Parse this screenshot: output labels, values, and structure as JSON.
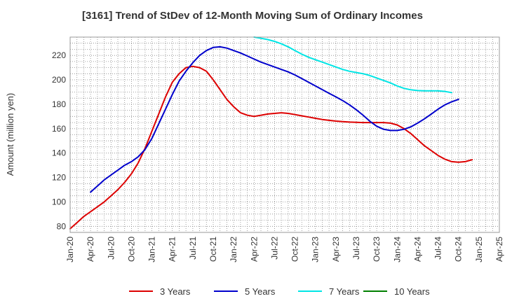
{
  "chart_data": {
    "type": "line",
    "title": "[3161]  Trend of StDev of 12-Month Moving Sum of Ordinary Incomes",
    "xlabel": "",
    "ylabel": "Amount (million yen)",
    "ylim": [
      75,
      235
    ],
    "yticks": [
      80,
      100,
      120,
      140,
      160,
      180,
      200,
      220
    ],
    "x_tick_labels": [
      "Jan-20",
      "Apr-20",
      "Jul-20",
      "Oct-20",
      "Jan-21",
      "Apr-21",
      "Jul-21",
      "Oct-21",
      "Jan-22",
      "Apr-22",
      "Jul-22",
      "Oct-22",
      "Jan-23",
      "Apr-23",
      "Jul-23",
      "Oct-23",
      "Jan-24",
      "Apr-24",
      "Jul-24",
      "Oct-24",
      "Jan-25",
      "Apr-25"
    ],
    "grid": true,
    "legend_position": "bottom",
    "series": [
      {
        "name": "3 Years",
        "color": "#dd0000",
        "points": [
          [
            0,
            78
          ],
          [
            1,
            83
          ],
          [
            2,
            88
          ],
          [
            3,
            92
          ],
          [
            4,
            96
          ],
          [
            5,
            100
          ],
          [
            6,
            105
          ],
          [
            7,
            110
          ],
          [
            8,
            116
          ],
          [
            9,
            123
          ],
          [
            10,
            132
          ],
          [
            11,
            144
          ],
          [
            12,
            158
          ],
          [
            13,
            172
          ],
          [
            14,
            186
          ],
          [
            15,
            198
          ],
          [
            16,
            205
          ],
          [
            17,
            210
          ],
          [
            18,
            211
          ],
          [
            19,
            210
          ],
          [
            20,
            207
          ],
          [
            21,
            200
          ],
          [
            22,
            192
          ],
          [
            23,
            184
          ],
          [
            24,
            178
          ],
          [
            25,
            173
          ],
          [
            26,
            171
          ],
          [
            27,
            170
          ],
          [
            28,
            171
          ],
          [
            29,
            172
          ],
          [
            30,
            172.5
          ],
          [
            31,
            173
          ],
          [
            32,
            172.5
          ],
          [
            33,
            171.5
          ],
          [
            34,
            170.5
          ],
          [
            35,
            169.5
          ],
          [
            36,
            168.5
          ],
          [
            37,
            167.5
          ],
          [
            38,
            166.8
          ],
          [
            39,
            166.2
          ],
          [
            40,
            165.7
          ],
          [
            41,
            165.4
          ],
          [
            42,
            165.2
          ],
          [
            43,
            165
          ],
          [
            44,
            165
          ],
          [
            45,
            165
          ],
          [
            46,
            165
          ],
          [
            47,
            164.5
          ],
          [
            48,
            163
          ],
          [
            49,
            160
          ],
          [
            50,
            156
          ],
          [
            51,
            151
          ],
          [
            52,
            146
          ],
          [
            53,
            142
          ],
          [
            54,
            138
          ],
          [
            55,
            135
          ],
          [
            56,
            133
          ],
          [
            57,
            132.5
          ],
          [
            58,
            133
          ],
          [
            59,
            134.5
          ]
        ]
      },
      {
        "name": "5 Years",
        "color": "#0000cc",
        "points": [
          [
            3,
            108
          ],
          [
            4,
            113
          ],
          [
            5,
            118
          ],
          [
            6,
            122
          ],
          [
            7,
            126
          ],
          [
            8,
            130
          ],
          [
            9,
            133
          ],
          [
            10,
            137
          ],
          [
            11,
            143
          ],
          [
            12,
            152
          ],
          [
            13,
            164
          ],
          [
            14,
            176
          ],
          [
            15,
            188
          ],
          [
            16,
            199
          ],
          [
            17,
            207
          ],
          [
            18,
            214
          ],
          [
            19,
            220
          ],
          [
            20,
            224
          ],
          [
            21,
            226.5
          ],
          [
            22,
            227
          ],
          [
            23,
            226
          ],
          [
            24,
            224
          ],
          [
            25,
            222
          ],
          [
            26,
            219.5
          ],
          [
            27,
            217
          ],
          [
            28,
            214.5
          ],
          [
            29,
            212.5
          ],
          [
            30,
            210.5
          ],
          [
            31,
            208.5
          ],
          [
            32,
            206.5
          ],
          [
            33,
            204
          ],
          [
            34,
            201
          ],
          [
            35,
            198
          ],
          [
            36,
            195
          ],
          [
            37,
            192
          ],
          [
            38,
            189
          ],
          [
            39,
            186
          ],
          [
            40,
            183
          ],
          [
            41,
            179.5
          ],
          [
            42,
            175.5
          ],
          [
            43,
            171
          ],
          [
            44,
            166
          ],
          [
            45,
            162
          ],
          [
            46,
            159.5
          ],
          [
            47,
            158.5
          ],
          [
            48,
            158.5
          ],
          [
            49,
            159.5
          ],
          [
            50,
            161.5
          ],
          [
            51,
            164.5
          ],
          [
            52,
            168
          ],
          [
            53,
            172
          ],
          [
            54,
            176
          ],
          [
            55,
            179.5
          ],
          [
            56,
            182
          ],
          [
            57,
            184
          ]
        ]
      },
      {
        "name": "7 Years",
        "color": "#00e5e5",
        "points": [
          [
            27,
            235
          ],
          [
            28,
            234
          ],
          [
            29,
            233
          ],
          [
            30,
            231.5
          ],
          [
            31,
            229.5
          ],
          [
            32,
            227
          ],
          [
            33,
            224
          ],
          [
            34,
            221
          ],
          [
            35,
            218.5
          ],
          [
            36,
            216.5
          ],
          [
            37,
            214.5
          ],
          [
            38,
            212.5
          ],
          [
            39,
            210.5
          ],
          [
            40,
            208.5
          ],
          [
            41,
            207
          ],
          [
            42,
            206
          ],
          [
            43,
            205
          ],
          [
            44,
            203.5
          ],
          [
            45,
            201.5
          ],
          [
            46,
            199.5
          ],
          [
            47,
            197.5
          ],
          [
            48,
            195
          ],
          [
            49,
            193
          ],
          [
            50,
            191.8
          ],
          [
            51,
            191.2
          ],
          [
            52,
            191
          ],
          [
            53,
            191
          ],
          [
            54,
            191
          ],
          [
            55,
            190.5
          ],
          [
            56,
            189.5
          ]
        ]
      },
      {
        "name": "10 Years",
        "color": "#008000",
        "points": []
      }
    ]
  }
}
